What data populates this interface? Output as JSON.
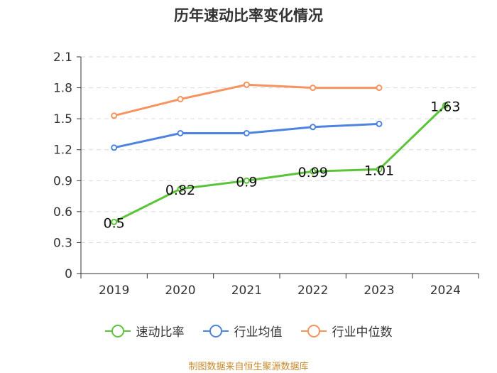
{
  "chart_data": {
    "type": "line",
    "title": "历年速动比率变化情况",
    "categories": [
      "2019",
      "2020",
      "2021",
      "2022",
      "2023",
      "2024"
    ],
    "ylim": [
      0,
      2.1
    ],
    "yticks": [
      "0",
      "0.3",
      "0.6",
      "0.9",
      "1.2",
      "1.5",
      "1.8",
      "2.1"
    ],
    "grid": true,
    "series": [
      {
        "name": "速动比率",
        "color": "#5cc43a",
        "values": [
          0.5,
          0.82,
          0.9,
          0.99,
          1.01,
          1.63
        ],
        "labels": [
          "0.5",
          "0.82",
          "0.9",
          "0.99",
          "1.01",
          "1.63"
        ]
      },
      {
        "name": "行业均值",
        "color": "#4f83e0",
        "values": [
          1.22,
          1.36,
          1.36,
          1.42,
          1.45,
          null
        ]
      },
      {
        "name": "行业中位数",
        "color": "#f7935f",
        "values": [
          1.53,
          1.69,
          1.83,
          1.8,
          1.8,
          null
        ]
      }
    ],
    "legend_position": "bottom",
    "source": "制图数据来自恒生聚源数据库"
  }
}
